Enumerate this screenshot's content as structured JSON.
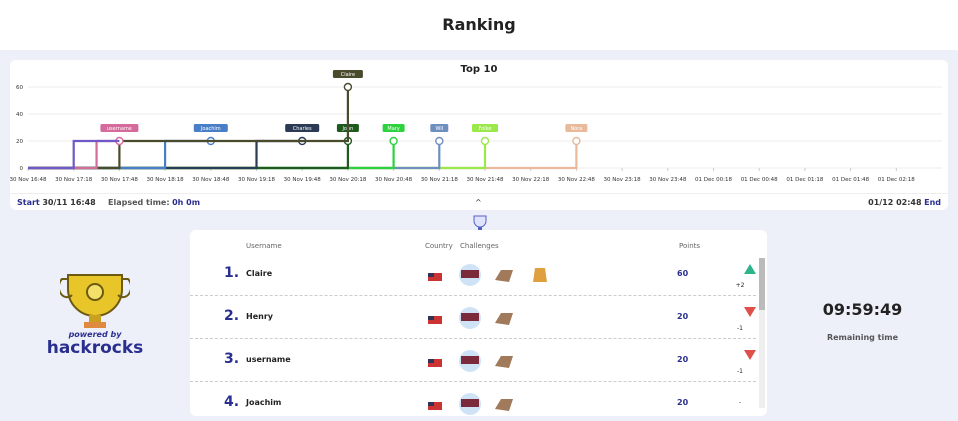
{
  "header": {
    "title": "Ranking"
  },
  "chart_data": {
    "type": "line",
    "title": "Top 10",
    "xticks": [
      {
        "value": 0,
        "label": "30 Nov 16:48"
      },
      {
        "value": 1,
        "label": "30 Nov 17:18"
      },
      {
        "value": 2,
        "label": "30 Nov 17:48"
      },
      {
        "value": 3,
        "label": "30 Nov 18:18"
      },
      {
        "value": 4,
        "label": "30 Nov 18:48"
      },
      {
        "value": 5,
        "label": "30 Nov 19:18"
      },
      {
        "value": 6,
        "label": "30 Nov 19:48"
      },
      {
        "value": 7,
        "label": "30 Nov 20:18"
      },
      {
        "value": 8,
        "label": "30 Nov 20:48"
      },
      {
        "value": 9,
        "label": "30 Nov 21:18"
      },
      {
        "value": 10,
        "label": "30 Nov 21:48"
      },
      {
        "value": 11,
        "label": "30 Nov 22:18"
      },
      {
        "value": 12,
        "label": "30 Nov 22:48"
      },
      {
        "value": 13,
        "label": "30 Nov 23:18"
      },
      {
        "value": 14,
        "label": "30 Nov 23:48"
      },
      {
        "value": 15,
        "label": "01 Dec 00:18"
      },
      {
        "value": 16,
        "label": "01 Dec 00:48"
      },
      {
        "value": 17,
        "label": "01 Dec 01:18"
      },
      {
        "value": 18,
        "label": "01 Dec 01:48"
      },
      {
        "value": 19,
        "label": "01 Dec 02:18"
      }
    ],
    "xlim": [
      0,
      20
    ],
    "ylim": [
      0,
      60
    ],
    "yticks": [
      0,
      20,
      40,
      60
    ],
    "grid": true,
    "series": [
      {
        "color": "#7158c8",
        "x": [
          0,
          1,
          1,
          2
        ],
        "values": [
          0,
          0,
          20,
          20
        ]
      },
      {
        "name": "username",
        "color": "#d46b9b",
        "x": [
          0,
          1.5,
          1.5,
          2
        ],
        "values": [
          0,
          0,
          20,
          20
        ]
      },
      {
        "name": "Claire",
        "color": "#4a4a2c",
        "x": [
          0,
          2,
          2,
          7,
          7
        ],
        "values": [
          0,
          0,
          20,
          20,
          60
        ]
      },
      {
        "name": "Joachim",
        "color": "#4a7fc8",
        "x": [
          0,
          3,
          3,
          4
        ],
        "values": [
          0,
          0,
          20,
          20
        ]
      },
      {
        "name": "Charles",
        "color": "#2b3a55",
        "x": [
          0,
          5,
          5,
          6
        ],
        "values": [
          0,
          0,
          20,
          20
        ]
      },
      {
        "name": "John",
        "color": "#1e5a1e",
        "x": [
          0,
          7,
          7
        ],
        "values": [
          0,
          0,
          20
        ]
      },
      {
        "name": "Mary",
        "color": "#2ed13e",
        "x": [
          0,
          8,
          8
        ],
        "values": [
          0,
          0,
          20
        ]
      },
      {
        "name": "Wil",
        "color": "#6d8fc0",
        "x": [
          0,
          9,
          9
        ],
        "values": [
          0,
          0,
          20
        ]
      },
      {
        "name": "Folke",
        "color": "#9be84a",
        "x": [
          0,
          10,
          10
        ],
        "values": [
          0,
          0,
          20
        ]
      },
      {
        "name": "Nora",
        "color": "#e8b99a",
        "x": [
          0,
          12,
          12
        ],
        "values": [
          0,
          0,
          20
        ]
      }
    ]
  },
  "timeline": {
    "start_label": "Start",
    "start": "30/11 16:48",
    "elapsed_label": "Elapsed time:",
    "elapsed": "0h 0m",
    "toggle": "^",
    "end": "01/12 02:48",
    "end_label": "End"
  },
  "brand": {
    "powered": "powered by",
    "name": "hackrocks"
  },
  "table": {
    "headers": [
      "Username",
      "Country",
      "Challenges",
      "Points"
    ],
    "rows": [
      {
        "rank": "1.",
        "name": "Claire",
        "challenges": 3,
        "points": "60",
        "change": "+2",
        "trend": "up"
      },
      {
        "rank": "2.",
        "name": "Henry",
        "challenges": 2,
        "points": "20",
        "change": "-1",
        "trend": "down"
      },
      {
        "rank": "3.",
        "name": "username",
        "challenges": 2,
        "points": "20",
        "change": "-1",
        "trend": "down"
      },
      {
        "rank": "4.",
        "name": "Joachim",
        "challenges": 2,
        "points": "20",
        "change": "-",
        "trend": "none"
      }
    ]
  },
  "timer": {
    "time": "09:59:49",
    "label": "Remaining time"
  }
}
